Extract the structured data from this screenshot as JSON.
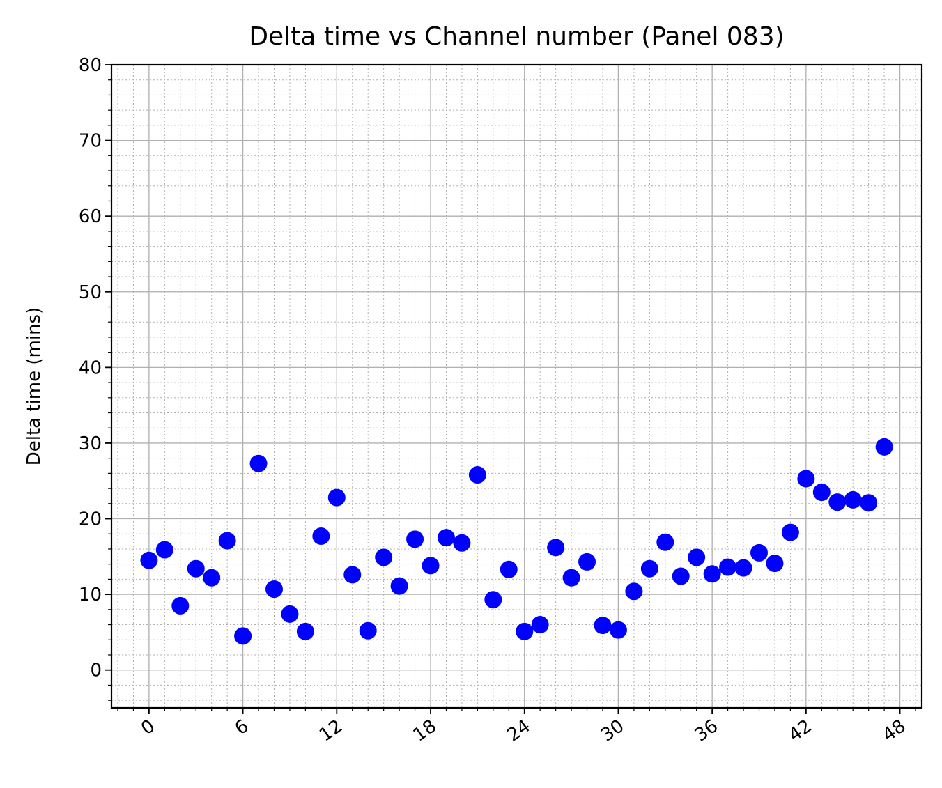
{
  "chart_data": {
    "type": "scatter",
    "title": "Delta time vs Channel number (Panel 083)",
    "xlabel": "",
    "ylabel": "Delta time (mins)",
    "xlim": [
      -2.4,
      49.4
    ],
    "ylim": [
      -5,
      80
    ],
    "xticks": [
      0,
      6,
      12,
      18,
      24,
      30,
      36,
      42,
      48
    ],
    "yticks": [
      0,
      10,
      20,
      30,
      40,
      50,
      60,
      70,
      80
    ],
    "x_minor_step": 1,
    "y_minor_step": 2,
    "grid": {
      "major": true,
      "minor": true
    },
    "marker_color": "#0000ff",
    "series": [
      {
        "x": [
          0,
          1,
          2,
          3,
          4,
          5,
          6,
          7,
          8,
          9,
          10,
          11,
          12,
          13,
          14,
          15,
          16,
          17,
          18,
          19,
          20,
          21,
          22,
          23,
          24,
          25,
          26,
          27,
          28,
          29,
          30,
          31,
          32,
          33,
          34,
          35,
          36,
          37,
          38,
          39,
          40,
          41,
          42,
          43,
          44,
          45,
          46,
          47
        ],
        "y": [
          14.5,
          15.9,
          8.5,
          13.4,
          12.2,
          17.1,
          4.5,
          27.3,
          10.7,
          7.4,
          5.1,
          17.7,
          22.8,
          12.6,
          5.2,
          14.9,
          11.1,
          17.3,
          13.8,
          17.5,
          16.8,
          25.8,
          9.3,
          13.3,
          5.1,
          6.0,
          16.2,
          12.2,
          14.3,
          5.9,
          5.3,
          10.4,
          13.4,
          16.9,
          12.4,
          14.9,
          12.7,
          13.6,
          13.5,
          15.5,
          14.1,
          18.2,
          25.3,
          23.5,
          22.2,
          22.5,
          22.1,
          29.5
        ]
      }
    ]
  }
}
